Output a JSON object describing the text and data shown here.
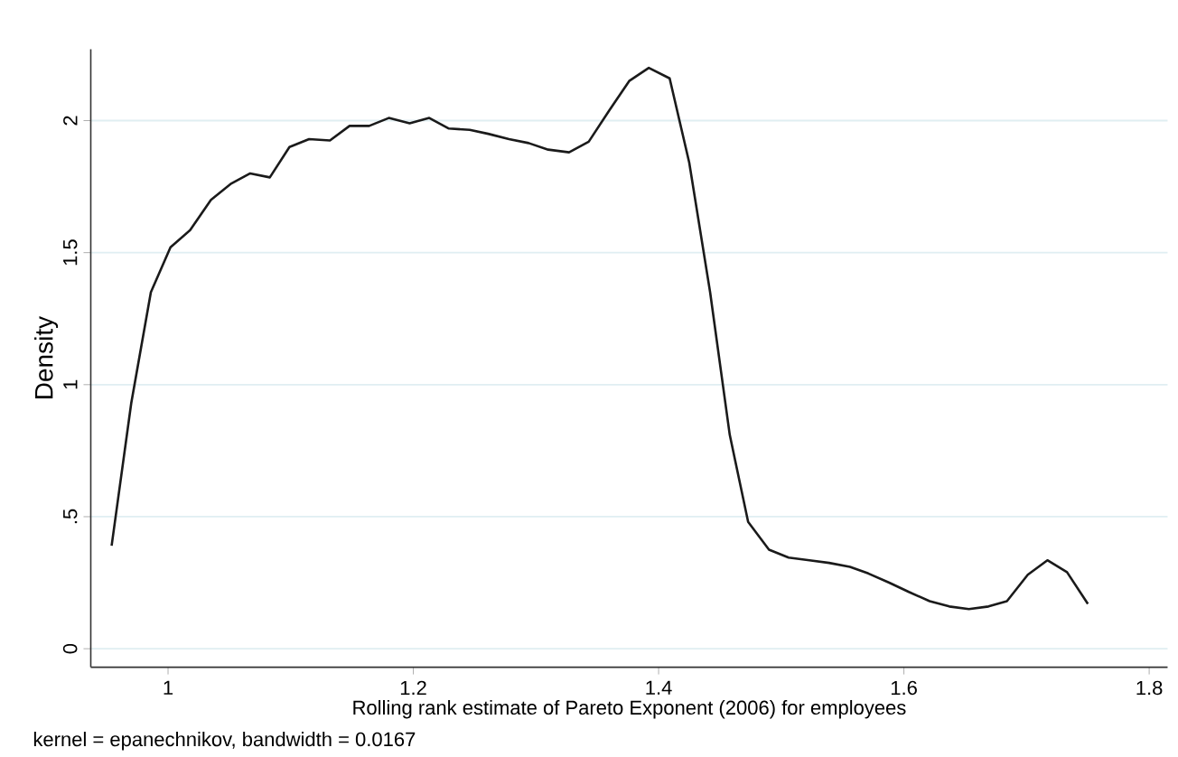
{
  "chart_data": {
    "type": "line",
    "xlabel": "Rolling rank estimate of Pareto Exponent (2006) for employees",
    "ylabel": "Density",
    "annotations": [
      "kernel = epanechnikov, bandwidth = 0.0167"
    ],
    "x": [
      0.954,
      0.97,
      0.986,
      1.002,
      1.018,
      1.035,
      1.051,
      1.067,
      1.083,
      1.099,
      1.115,
      1.132,
      1.148,
      1.164,
      1.18,
      1.197,
      1.213,
      1.229,
      1.246,
      1.261,
      1.278,
      1.294,
      1.31,
      1.327,
      1.343,
      1.36,
      1.376,
      1.392,
      1.409,
      1.425,
      1.442,
      1.458,
      1.473,
      1.49,
      1.506,
      1.523,
      1.539,
      1.556,
      1.571,
      1.588,
      1.604,
      1.621,
      1.637,
      1.653,
      1.669,
      1.684,
      1.701,
      1.717,
      1.733,
      1.75
    ],
    "series": [
      {
        "color": "#1a1a1a",
        "values": [
          0.39,
          0.93,
          1.35,
          1.52,
          1.585,
          1.7,
          1.76,
          1.8,
          1.785,
          1.9,
          1.93,
          1.925,
          1.98,
          1.98,
          2.01,
          1.99,
          2.01,
          1.97,
          1.965,
          1.95,
          1.93,
          1.915,
          1.89,
          1.88,
          1.92,
          2.04,
          2.15,
          2.2,
          2.16,
          1.84,
          1.35,
          0.81,
          0.48,
          0.375,
          0.345,
          0.335,
          0.325,
          0.31,
          0.285,
          0.25,
          0.215,
          0.18,
          0.16,
          0.15,
          0.16,
          0.18,
          0.28,
          0.335,
          0.29,
          0.17
        ]
      }
    ],
    "xlim": [
      0.937,
      1.815
    ],
    "xticks": [
      1,
      1.2,
      1.4,
      1.6,
      1.8
    ],
    "ylim": [
      -0.07,
      2.27
    ],
    "yticks": [
      0,
      {
        "value": 0.5,
        "label": ".5"
      },
      1,
      1.5,
      2
    ],
    "grid": "y",
    "marker": "none",
    "line_style": "solid"
  }
}
